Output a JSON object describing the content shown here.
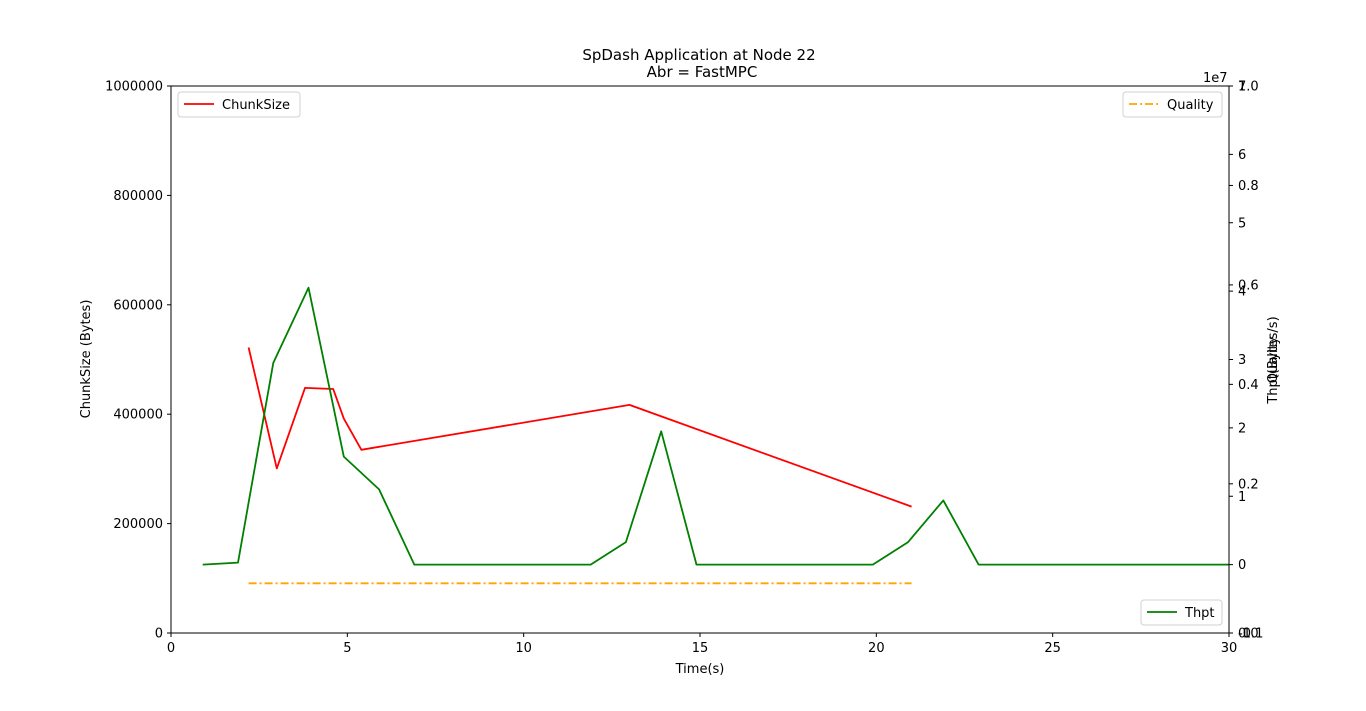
{
  "chart_data": {
    "type": "line",
    "title": "SpDash Application at Node 22",
    "subtitle": "Abr = FastMPC",
    "xlabel": "Time(s)",
    "xlim": [
      0,
      30
    ],
    "xticks": [
      0,
      5,
      10,
      15,
      20,
      25,
      30
    ],
    "axes": {
      "chunk": {
        "label": "ChunkSize (Bytes)",
        "lim": [
          0,
          1000000
        ],
        "ticks": [
          0,
          200000,
          400000,
          600000,
          800000,
          1000000
        ]
      },
      "quality": {
        "label": "Quality",
        "lim": [
          -0.1,
          1.0
        ],
        "ticks": [
          "-0.1",
          "0.2",
          "0.4",
          "0.6",
          "0.8",
          "1.0"
        ]
      },
      "thpt": {
        "label": "Thpt(Bytes/s)",
        "lim": [
          -1,
          7
        ],
        "ticks": [
          "-1",
          "0",
          "1",
          "2",
          "3",
          "4",
          "5",
          "6",
          "7"
        ],
        "offset_text": "1e7"
      },
      "extra": {
        "lim": [
          0,
          1
        ],
        "ticks": [
          "0.0"
        ]
      }
    },
    "series": [
      {
        "name": "ChunkSize",
        "axis": "chunk",
        "color": "#ff0000",
        "style": "solid",
        "x": [
          2.2,
          3.0,
          3.8,
          4.6,
          4.9,
          5.4,
          13.0,
          21.0
        ],
        "y": [
          522000,
          301000,
          448000,
          446000,
          392000,
          335000,
          417000,
          231000
        ]
      },
      {
        "name": "Quality",
        "axis": "quality",
        "color": "#ffa500",
        "style": "dashdot",
        "x": [
          2.2,
          21.0
        ],
        "y": [
          0.0,
          0.0
        ]
      },
      {
        "name": "Thpt",
        "axis": "thpt",
        "color": "#008000",
        "style": "solid",
        "x": [
          0.9,
          1.9,
          2.9,
          3.9,
          4.9,
          5.9,
          6.9,
          11.9,
          12.9,
          13.9,
          14.9,
          19.9,
          20.9,
          21.9,
          22.9,
          30.0
        ],
        "y": [
          0,
          0.03,
          2.95,
          4.05,
          1.58,
          1.1,
          0,
          0,
          0.33,
          1.95,
          0,
          0,
          0.33,
          0.94,
          0,
          0
        ]
      }
    ],
    "legends": [
      {
        "series": "ChunkSize",
        "placement": "upper left"
      },
      {
        "series": "Quality",
        "placement": "upper right"
      },
      {
        "series": "Thpt",
        "placement": "lower right"
      }
    ]
  }
}
